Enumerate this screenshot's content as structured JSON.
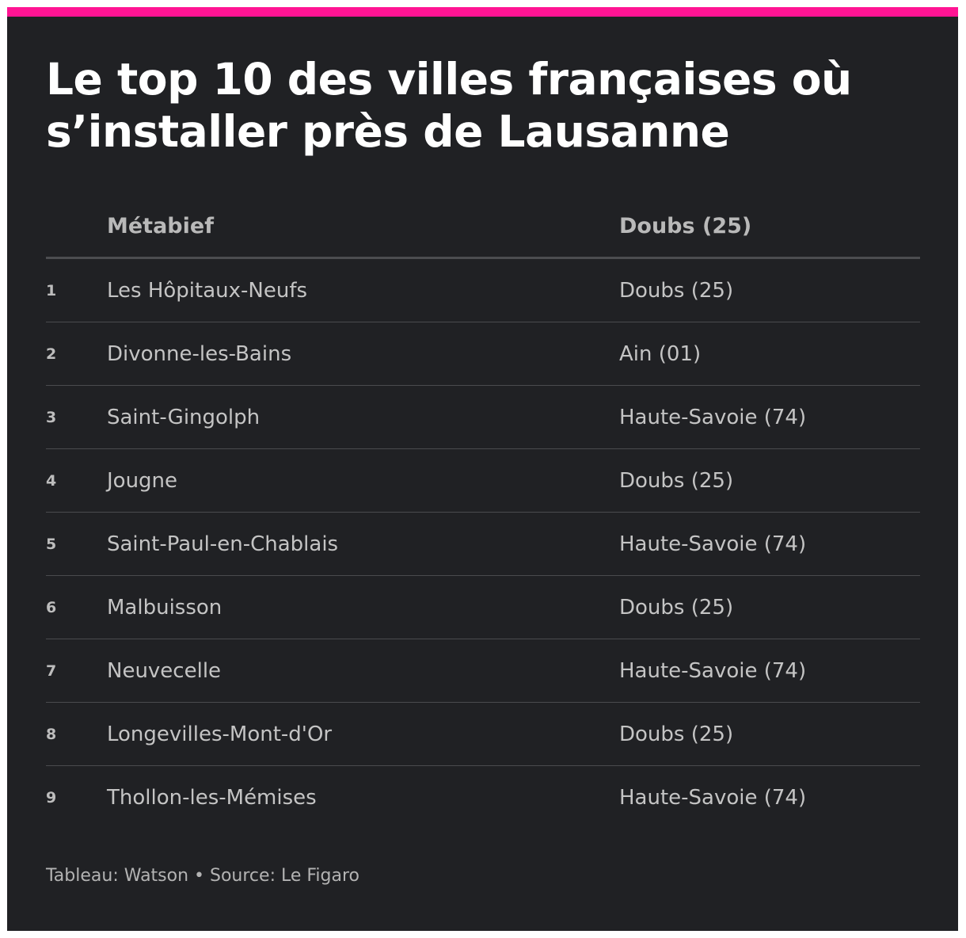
{
  "colors": {
    "accent": "#ff1493",
    "background": "#202124"
  },
  "title": "Le top 10 des villes françaises où s’installer près de Lausanne",
  "table": {
    "header": {
      "rank": "",
      "city": "Métabief",
      "department": "Doubs (25)"
    },
    "rows": [
      {
        "rank": "1",
        "city": "Les Hôpitaux-Neufs",
        "department": "Doubs (25)"
      },
      {
        "rank": "2",
        "city": "Divonne-les-Bains",
        "department": "Ain (01)"
      },
      {
        "rank": "3",
        "city": "Saint-Gingolph",
        "department": "Haute-Savoie (74)"
      },
      {
        "rank": "4",
        "city": "Jougne",
        "department": "Doubs (25)"
      },
      {
        "rank": "5",
        "city": "Saint-Paul-en-Chablais",
        "department": "Haute-Savoie (74)"
      },
      {
        "rank": "6",
        "city": "Malbuisson",
        "department": "Doubs (25)"
      },
      {
        "rank": "7",
        "city": "Neuvecelle",
        "department": "Haute-Savoie (74)"
      },
      {
        "rank": "8",
        "city": "Longevilles-Mont-d'Or",
        "department": "Doubs (25)"
      },
      {
        "rank": "9",
        "city": "Thollon-les-Mémises",
        "department": "Haute-Savoie (74)"
      }
    ]
  },
  "footer": {
    "source": "Tableau: Watson • Source: Le Figaro"
  }
}
